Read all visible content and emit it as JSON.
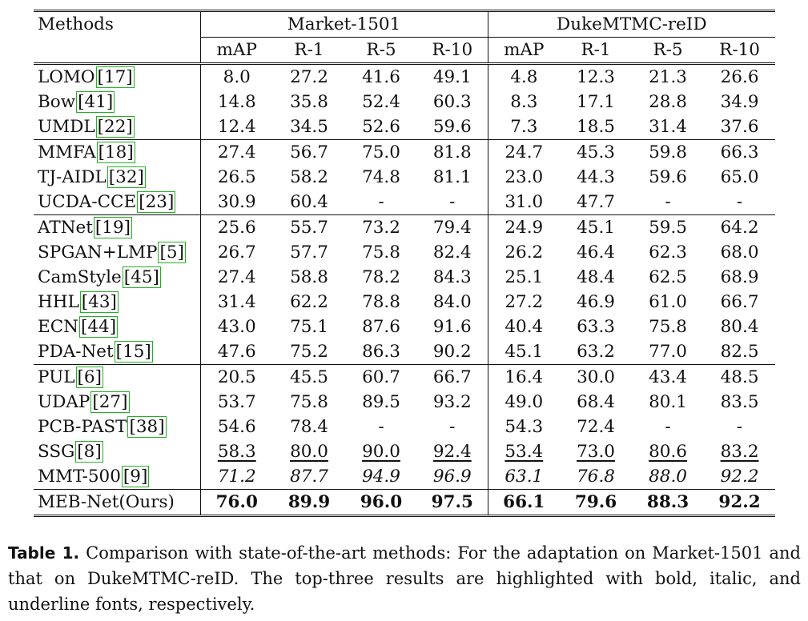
{
  "table": {
    "methods_header": "Methods",
    "datasets": [
      "Market-1501",
      "DukeMTMC-reID"
    ],
    "metrics": [
      "mAP",
      "R-1",
      "R-5",
      "R-10"
    ],
    "groups": [
      [
        {
          "name": "LOMO",
          "ref": "17",
          "values": [
            "8.0",
            "27.2",
            "41.6",
            "49.1",
            "4.8",
            "12.3",
            "21.3",
            "26.6"
          ]
        },
        {
          "name": "Bow",
          "ref": "41",
          "values": [
            "14.8",
            "35.8",
            "52.4",
            "60.3",
            "8.3",
            "17.1",
            "28.8",
            "34.9"
          ]
        },
        {
          "name": "UMDL",
          "ref": "22",
          "values": [
            "12.4",
            "34.5",
            "52.6",
            "59.6",
            "7.3",
            "18.5",
            "31.4",
            "37.6"
          ]
        }
      ],
      [
        {
          "name": "MMFA",
          "ref": "18",
          "values": [
            "27.4",
            "56.7",
            "75.0",
            "81.8",
            "24.7",
            "45.3",
            "59.8",
            "66.3"
          ]
        },
        {
          "name": "TJ-AIDL",
          "ref": "32",
          "values": [
            "26.5",
            "58.2",
            "74.8",
            "81.1",
            "23.0",
            "44.3",
            "59.6",
            "65.0"
          ]
        },
        {
          "name": "UCDA-CCE",
          "ref": "23",
          "values": [
            "30.9",
            "60.4",
            "-",
            "-",
            "31.0",
            "47.7",
            "-",
            "-"
          ]
        }
      ],
      [
        {
          "name": "ATNet",
          "ref": "19",
          "values": [
            "25.6",
            "55.7",
            "73.2",
            "79.4",
            "24.9",
            "45.1",
            "59.5",
            "64.2"
          ]
        },
        {
          "name": "SPGAN+LMP",
          "ref": "5",
          "values": [
            "26.7",
            "57.7",
            "75.8",
            "82.4",
            "26.2",
            "46.4",
            "62.3",
            "68.0"
          ]
        },
        {
          "name": "CamStyle",
          "ref": "45",
          "values": [
            "27.4",
            "58.8",
            "78.2",
            "84.3",
            "25.1",
            "48.4",
            "62.5",
            "68.9"
          ]
        },
        {
          "name": "HHL",
          "ref": "43",
          "values": [
            "31.4",
            "62.2",
            "78.8",
            "84.0",
            "27.2",
            "46.9",
            "61.0",
            "66.7"
          ]
        },
        {
          "name": "ECN",
          "ref": "44",
          "values": [
            "43.0",
            "75.1",
            "87.6",
            "91.6",
            "40.4",
            "63.3",
            "75.8",
            "80.4"
          ]
        },
        {
          "name": "PDA-Net",
          "ref": "15",
          "values": [
            "47.6",
            "75.2",
            "86.3",
            "90.2",
            "45.1",
            "63.2",
            "77.0",
            "82.5"
          ]
        }
      ],
      [
        {
          "name": "PUL",
          "ref": "6",
          "values": [
            "20.5",
            "45.5",
            "60.7",
            "66.7",
            "16.4",
            "30.0",
            "43.4",
            "48.5"
          ]
        },
        {
          "name": "UDAP",
          "ref": "27",
          "values": [
            "53.7",
            "75.8",
            "89.5",
            "93.2",
            "49.0",
            "68.4",
            "80.1",
            "83.5"
          ]
        },
        {
          "name": "PCB-PAST",
          "ref": "38",
          "values": [
            "54.6",
            "78.4",
            "-",
            "-",
            "54.3",
            "72.4",
            "-",
            "-"
          ]
        },
        {
          "name": "SSG",
          "ref": "8",
          "style": "underline",
          "values": [
            "58.3",
            "80.0",
            "90.0",
            "92.4",
            "53.4",
            "73.0",
            "80.6",
            "83.2"
          ]
        },
        {
          "name": "MMT-500",
          "ref": "9",
          "style": "italic",
          "values": [
            "71.2",
            "87.7",
            "94.9",
            "96.9",
            "63.1",
            "76.8",
            "88.0",
            "92.2"
          ]
        }
      ]
    ],
    "ours": {
      "name": "MEB-Net(Ours)",
      "style": "bold",
      "values": [
        "76.0",
        "89.9",
        "96.0",
        "97.5",
        "66.1",
        "79.6",
        "88.3",
        "92.2"
      ]
    }
  },
  "caption": {
    "label": "Table 1.",
    "text": "Comparison with state-of-the-art methods: For the adaptation on Market-1501 and that on DukeMTMC-reID. The top-three results are highlighted with bold, italic, and underline fonts, respectively."
  }
}
